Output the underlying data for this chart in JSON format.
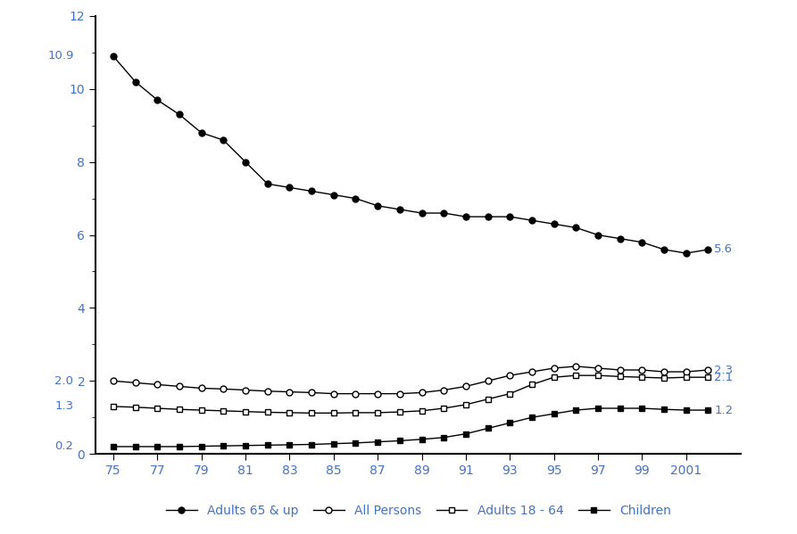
{
  "years": [
    1975,
    1976,
    1977,
    1978,
    1979,
    1980,
    1981,
    1982,
    1983,
    1984,
    1985,
    1986,
    1987,
    1988,
    1989,
    1990,
    1991,
    1992,
    1993,
    1994,
    1995,
    1996,
    1997,
    1998,
    1999,
    2000,
    2001,
    2002
  ],
  "adults_65_up": [
    10.9,
    10.2,
    9.7,
    9.3,
    8.8,
    8.6,
    8.0,
    7.4,
    7.3,
    7.2,
    7.1,
    7.0,
    6.8,
    6.7,
    6.6,
    6.6,
    6.5,
    6.5,
    6.5,
    6.4,
    6.3,
    6.2,
    6.0,
    5.9,
    5.8,
    5.6,
    5.5,
    5.6
  ],
  "all_persons": [
    2.0,
    1.95,
    1.9,
    1.85,
    1.8,
    1.78,
    1.75,
    1.72,
    1.7,
    1.68,
    1.65,
    1.65,
    1.65,
    1.65,
    1.68,
    1.75,
    1.85,
    2.0,
    2.15,
    2.25,
    2.35,
    2.4,
    2.35,
    2.3,
    2.3,
    2.25,
    2.25,
    2.3
  ],
  "adults_18_64": [
    1.3,
    1.28,
    1.25,
    1.22,
    1.2,
    1.18,
    1.16,
    1.14,
    1.13,
    1.12,
    1.12,
    1.13,
    1.13,
    1.15,
    1.18,
    1.25,
    1.35,
    1.5,
    1.65,
    1.9,
    2.1,
    2.15,
    2.15,
    2.12,
    2.1,
    2.08,
    2.1,
    2.1
  ],
  "children": [
    0.2,
    0.2,
    0.2,
    0.2,
    0.21,
    0.22,
    0.23,
    0.24,
    0.25,
    0.26,
    0.28,
    0.3,
    0.33,
    0.36,
    0.4,
    0.45,
    0.55,
    0.7,
    0.85,
    1.0,
    1.1,
    1.2,
    1.25,
    1.25,
    1.25,
    1.22,
    1.2,
    1.2
  ],
  "ylim": [
    0,
    12
  ],
  "yticks_major": [
    0,
    2,
    4,
    6,
    8,
    10,
    12
  ],
  "yticks_minor": [
    1,
    3,
    5,
    7,
    9,
    11
  ],
  "xtick_labels": [
    "75",
    "77",
    "79",
    "81",
    "83",
    "85",
    "87",
    "89",
    "91",
    "93",
    "95",
    "97",
    "99",
    "2001"
  ],
  "xtick_positions": [
    1975,
    1977,
    1979,
    1981,
    1983,
    1985,
    1987,
    1989,
    1991,
    1993,
    1995,
    1997,
    1999,
    2001
  ],
  "label_color": "#4f6228",
  "annotation_color": "#4472c4",
  "line_color": "#000000",
  "legend_labels": [
    "Adults 65 & up",
    "All Persons",
    "Adults 18 - 64",
    "Children"
  ],
  "annot_left": {
    "10.9": [
      1975,
      10.9
    ],
    "2.0": [
      1975,
      2.0
    ],
    "1.3": [
      1975,
      1.3
    ],
    "0.2": [
      1975,
      0.2
    ]
  },
  "annot_right": {
    "5.6": [
      2002,
      5.6
    ],
    "2.3": [
      2002,
      2.3
    ],
    "2.1": [
      2002,
      2.1
    ],
    "1.2": [
      2002,
      1.2
    ]
  }
}
